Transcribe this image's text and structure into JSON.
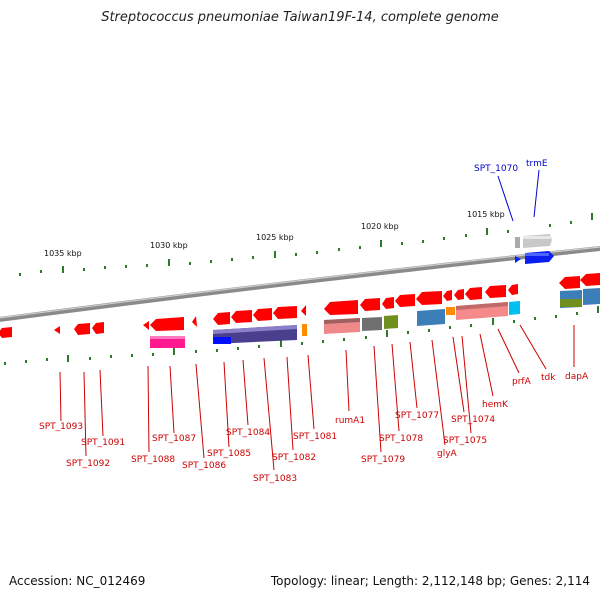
{
  "title": "Streptococcus pneumoniae Taiwan19F-14, complete genome",
  "accession": "Accession: NC_012469",
  "topology": "Topology: linear; Length: 2,112,148 bp; Genes: 2,114",
  "kbp_labels": [
    "1035 kbp",
    "1030 kbp",
    "1025 kbp",
    "1020 kbp",
    "1015 kbp"
  ],
  "top_genes": [
    "SPT_1070",
    "trmE"
  ],
  "bottom_genes": [
    "SPT_1093",
    "SPT_1092",
    "SPT_1091",
    "SPT_1088",
    "SPT_1087",
    "SPT_1086",
    "SPT_1085",
    "SPT_1084",
    "SPT_1083",
    "SPT_1082",
    "SPT_1081",
    "rumA1",
    "SPT_1079",
    "SPT_1078",
    "SPT_1077",
    "glyA",
    "SPT_1075",
    "SPT_1074",
    "hemK",
    "prfA",
    "tdk",
    "dapA"
  ],
  "colors": {
    "gene": "#ff0000",
    "label_red": "#cc0000",
    "label_blue": "#0000cc",
    "tick": "#2a7a2a",
    "backbone": "#7a7a7a"
  }
}
